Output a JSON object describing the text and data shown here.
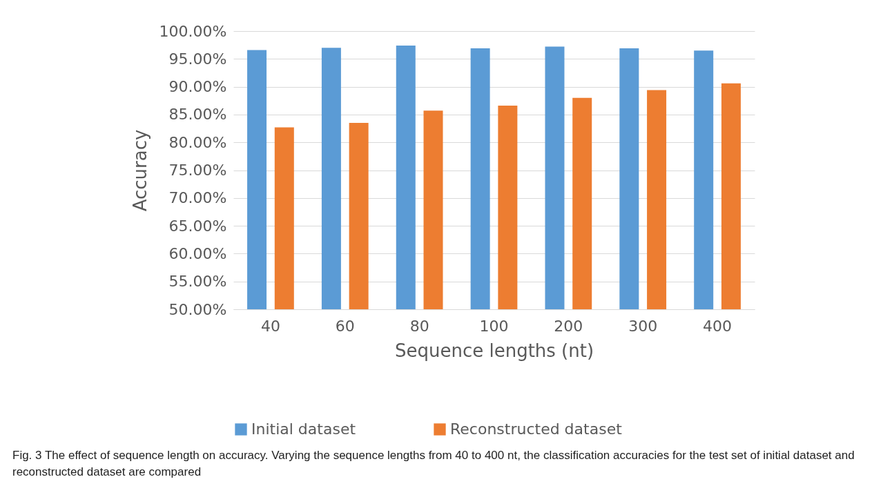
{
  "chart_data": {
    "type": "bar",
    "xlabel": "Sequence lengths (nt)",
    "ylabel": "Accuracy",
    "categories": [
      "40",
      "60",
      "80",
      "100",
      "200",
      "300",
      "400"
    ],
    "series": [
      {
        "name": "Initial dataset",
        "color": "#5b9bd5",
        "values": [
          96.6,
          97.0,
          97.4,
          96.9,
          97.2,
          96.9,
          96.5
        ]
      },
      {
        "name": "Reconstructed dataset",
        "color": "#ed7d31",
        "values": [
          82.7,
          83.5,
          85.7,
          86.6,
          88.0,
          89.4,
          90.6
        ]
      }
    ],
    "ylim": [
      50,
      100
    ],
    "yticks": [
      {
        "value": 50,
        "label": "50.00%"
      },
      {
        "value": 55,
        "label": "55.00%"
      },
      {
        "value": 60,
        "label": "60.00%"
      },
      {
        "value": 65,
        "label": "65.00%"
      },
      {
        "value": 70,
        "label": "70.00%"
      },
      {
        "value": 75,
        "label": "75.00%"
      },
      {
        "value": 80,
        "label": "80.00%"
      },
      {
        "value": 85,
        "label": "85.00%"
      },
      {
        "value": 90,
        "label": "90.00%"
      },
      {
        "value": 95,
        "label": "95.00%"
      },
      {
        "value": 100,
        "label": "100.00%"
      }
    ],
    "grid": "y",
    "legend": "bottom",
    "annotations": [
      "Fig. 3 The effect of sequence length on accuracy. Varying the sequence lengths from 40 to 400 nt, the classification accuracies for the test set of initial dataset and reconstructed dataset are compared"
    ]
  }
}
